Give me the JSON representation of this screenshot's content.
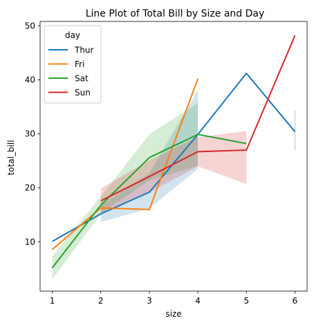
{
  "chart_data": {
    "type": "line",
    "title": "Line Plot of Total Bill by Size and Day",
    "xlabel": "size",
    "ylabel": "total_bill",
    "xlim": [
      0.75,
      6.25
    ],
    "ylim": [
      0.9,
      50.8
    ],
    "xticks": [
      1,
      2,
      3,
      4,
      5,
      6
    ],
    "yticks": [
      10,
      20,
      30,
      40,
      50
    ],
    "legend": {
      "title": "day",
      "position": "upper-left"
    },
    "series": [
      {
        "name": "Thur",
        "color": "#1f77b4",
        "points": [
          [
            1,
            10.1
          ],
          [
            2,
            15.2
          ],
          [
            3,
            19.2
          ],
          [
            4,
            29.9
          ],
          [
            5,
            41.2
          ],
          [
            6,
            30.4
          ]
        ],
        "ci_band": [
          [
            2,
            13.7,
            16.8
          ],
          [
            3,
            16.2,
            22.7
          ],
          [
            4,
            23.5,
            38.1
          ]
        ],
        "ci_isolated": [
          [
            6,
            27.0,
            34.3
          ]
        ]
      },
      {
        "name": "Fri",
        "color": "#ff7f0e",
        "points": [
          [
            1,
            8.6
          ],
          [
            2,
            16.3
          ],
          [
            3,
            16.0
          ],
          [
            4,
            40.2
          ]
        ]
      },
      {
        "name": "Sat",
        "color": "#2ca02c",
        "points": [
          [
            1,
            5.2
          ],
          [
            2,
            16.8
          ],
          [
            3,
            25.6
          ],
          [
            4,
            29.9
          ],
          [
            5,
            28.2
          ]
        ],
        "ci_band": [
          [
            1,
            3.1,
            7.3
          ],
          [
            2,
            15.2,
            18.4
          ],
          [
            3,
            21.4,
            29.9
          ],
          [
            4,
            24.1,
            35.7
          ]
        ]
      },
      {
        "name": "Sun",
        "color": "#d62728",
        "points": [
          [
            2,
            17.6
          ],
          [
            3,
            22.1
          ],
          [
            4,
            26.7
          ],
          [
            5,
            27.0
          ],
          [
            6,
            48.2
          ]
        ],
        "ci_band": [
          [
            2,
            15.4,
            19.9
          ],
          [
            3,
            19.1,
            25.1
          ],
          [
            4,
            24.0,
            29.4
          ],
          [
            5,
            20.7,
            30.5
          ]
        ]
      }
    ]
  }
}
